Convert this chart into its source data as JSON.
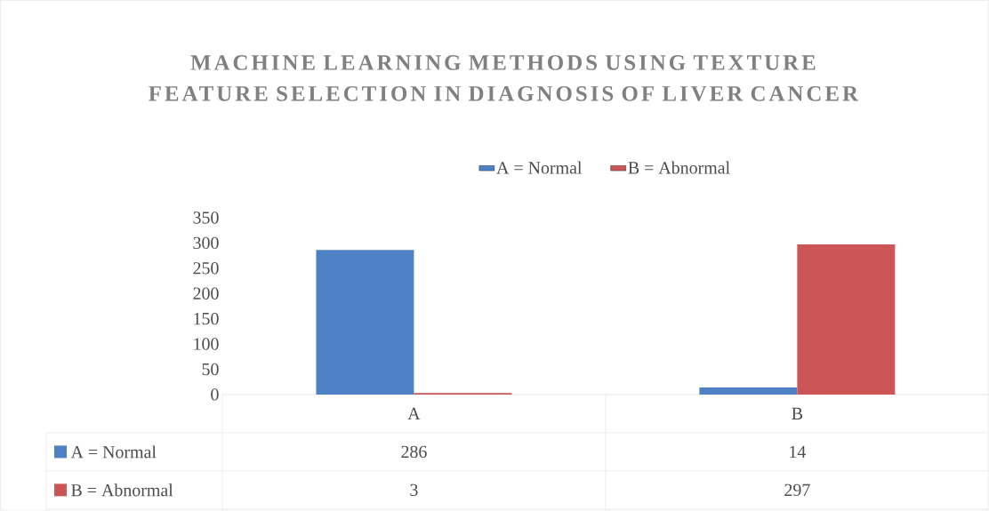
{
  "chart_data": {
    "type": "bar",
    "title": "MACHINE LEARNING METHODS USING TEXTURE FEATURE SELECTION IN DIAGNOSIS OF LIVER CANCER",
    "categories": [
      "A",
      "B"
    ],
    "series": [
      {
        "name": "A = Normal",
        "color": "#4f81c7",
        "values": [
          286,
          14
        ]
      },
      {
        "name": "B = Abnormal",
        "color": "#cc5555",
        "values": [
          3,
          297
        ]
      }
    ],
    "ylim": [
      0,
      350
    ],
    "yticks": [
      0,
      50,
      100,
      150,
      200,
      250,
      300,
      350
    ],
    "legend": "top",
    "data_labels": true
  }
}
